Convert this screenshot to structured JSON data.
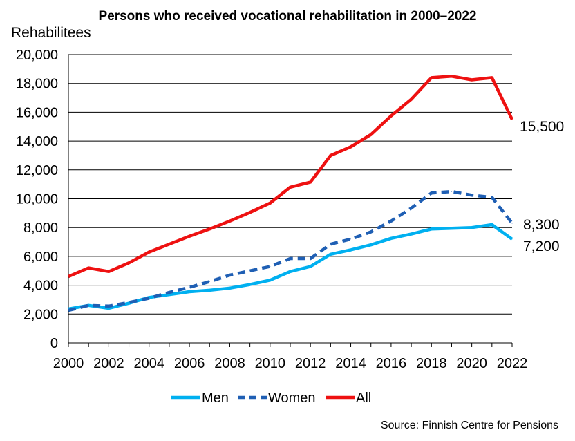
{
  "chart_data": {
    "type": "line",
    "title": "Persons who received vocational rehabilitation in 2000–2022",
    "ylabel": "Rehabilitees",
    "xlabel": "",
    "ylim": [
      0,
      20000
    ],
    "yticks": [
      0,
      2000,
      4000,
      6000,
      8000,
      10000,
      12000,
      14000,
      16000,
      18000,
      20000
    ],
    "ytick_labels": [
      "0",
      "2,000",
      "4,000",
      "6,000",
      "8,000",
      "10,000",
      "12,000",
      "14,000",
      "16,000",
      "18,000",
      "20,000"
    ],
    "xticks": [
      2000,
      2002,
      2004,
      2006,
      2008,
      2010,
      2012,
      2014,
      2016,
      2018,
      2020,
      2022
    ],
    "xtick_labels": [
      "2000",
      "2002",
      "2004",
      "2006",
      "2008",
      "2010",
      "2012",
      "2014",
      "2016",
      "2018",
      "2020",
      "2022"
    ],
    "x": [
      2000,
      2001,
      2002,
      2003,
      2004,
      2005,
      2006,
      2007,
      2008,
      2009,
      2010,
      2011,
      2012,
      2013,
      2014,
      2015,
      2016,
      2017,
      2018,
      2019,
      2020,
      2021,
      2022
    ],
    "grid": "horizontal",
    "legend_position": "bottom",
    "series": [
      {
        "name": "Men",
        "color": "#00b0f0",
        "style": "solid",
        "values": [
          2350,
          2600,
          2400,
          2750,
          3150,
          3350,
          3550,
          3650,
          3800,
          4050,
          4350,
          4950,
          5300,
          6150,
          6450,
          6800,
          7250,
          7550,
          7900,
          7950,
          8000,
          8200,
          7200
        ],
        "end_label": "7,200"
      },
      {
        "name": "Women",
        "color": "#1f5fb4",
        "style": "dashed",
        "values": [
          2250,
          2600,
          2550,
          2800,
          3100,
          3500,
          3850,
          4250,
          4700,
          5000,
          5300,
          5850,
          5850,
          6850,
          7200,
          7700,
          8450,
          9350,
          10400,
          10500,
          10250,
          10100,
          8300
        ],
        "end_label": "8,300"
      },
      {
        "name": "All",
        "color": "#ee1111",
        "style": "solid",
        "values": [
          4600,
          5200,
          4950,
          5550,
          6300,
          6850,
          7400,
          7900,
          8450,
          9050,
          9700,
          10800,
          11150,
          13000,
          13600,
          14450,
          15750,
          16900,
          18400,
          18500,
          18250,
          18400,
          15500
        ],
        "end_label": "15,500"
      }
    ],
    "source": "Source: Finnish Centre for Pensions"
  }
}
